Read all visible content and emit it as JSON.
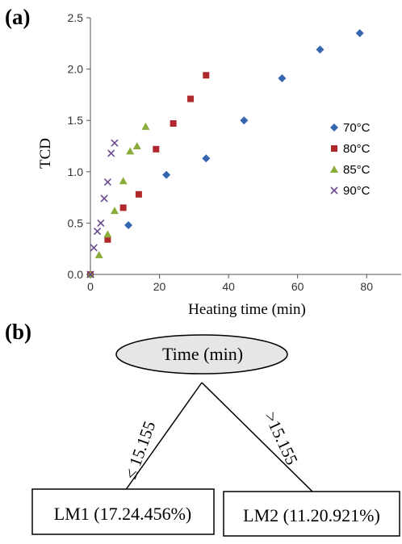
{
  "panel_a": {
    "label": "(a)"
  },
  "panel_b": {
    "label": "(b)"
  },
  "chart_data": {
    "type": "scatter",
    "xlabel": "Heating time (min)",
    "ylabel": "TCD",
    "xlim": [
      0,
      90
    ],
    "ylim": [
      0,
      2.5
    ],
    "xticks": [
      "0",
      "20",
      "40",
      "60",
      "80"
    ],
    "yticks": [
      "0.0",
      "0.5",
      "1.0",
      "1.5",
      "2.0",
      "2.5"
    ],
    "grid": false,
    "legend_position": "right",
    "series": [
      {
        "name": "70°C",
        "marker": "diamond",
        "color": "#3566b0",
        "x": [
          0,
          11,
          22,
          33.5,
          44.5,
          55.5,
          66.5,
          78
        ],
        "y": [
          0,
          0.48,
          0.97,
          1.13,
          1.5,
          1.91,
          2.19,
          2.35
        ]
      },
      {
        "name": "80°C",
        "marker": "square",
        "color": "#b0282c",
        "x": [
          0,
          5,
          9.5,
          14,
          19,
          24,
          29,
          33.5
        ],
        "y": [
          0,
          0.34,
          0.65,
          0.78,
          1.22,
          1.47,
          1.71,
          1.94
        ]
      },
      {
        "name": "85°C",
        "marker": "triangle",
        "color": "#8aac3a",
        "x": [
          0,
          2.5,
          5,
          7,
          9.5,
          11.5,
          13.5,
          16
        ],
        "y": [
          0,
          0.19,
          0.39,
          0.62,
          0.91,
          1.2,
          1.25,
          1.44
        ]
      },
      {
        "name": "90°C",
        "marker": "x",
        "color": "#6b4a8c",
        "x": [
          0,
          1,
          2,
          3,
          4,
          5,
          6,
          7
        ],
        "y": [
          0,
          0.26,
          0.42,
          0.5,
          0.74,
          0.9,
          1.18,
          1.28
        ]
      }
    ]
  },
  "tree": {
    "root": "Time (min)",
    "left_branch": "≤ 15.155",
    "right_branch": ">15.155",
    "left_leaf": "LM1 (17.24.456%)",
    "right_leaf": "LM2 (11.20.921%)"
  }
}
